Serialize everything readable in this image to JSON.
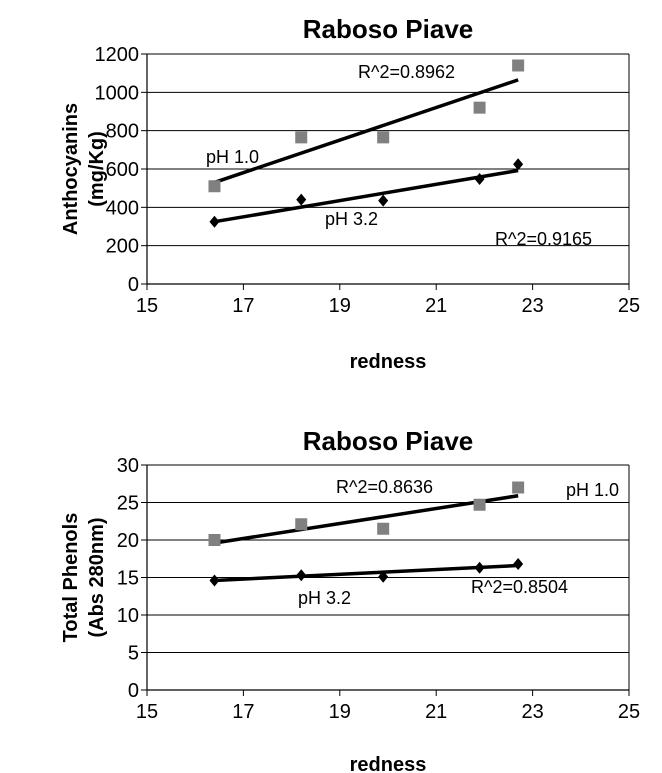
{
  "chart_data": [
    {
      "type": "scatter",
      "title": "Raboso Piave",
      "xlabel": "redness",
      "ylabel": [
        "Anthocyanins",
        "(mg/Kg)"
      ],
      "xlim": [
        15,
        25
      ],
      "ylim": [
        0,
        1200
      ],
      "xticks": [
        "15",
        "17",
        "19",
        "21",
        "23",
        "25"
      ],
      "yticks": [
        "0",
        "200",
        "400",
        "600",
        "800",
        "1000",
        "1200"
      ],
      "grid": "horizontal",
      "series": [
        {
          "name": "pH 1.0",
          "marker": "square",
          "color": "#808080",
          "x": [
            16.4,
            18.2,
            19.9,
            21.9,
            22.7
          ],
          "y": [
            510,
            765,
            765,
            920,
            1140
          ],
          "trendline": [
            [
              16.4,
              530
            ],
            [
              22.7,
              1065
            ]
          ],
          "r2_label": "R^2=0.8962"
        },
        {
          "name": "pH 3.2",
          "marker": "diamond",
          "color": "#000000",
          "x": [
            16.4,
            18.2,
            19.9,
            21.9,
            22.7
          ],
          "y": [
            325,
            440,
            435,
            548,
            625
          ],
          "trendline": [
            [
              16.4,
              325
            ],
            [
              22.7,
              592
            ]
          ],
          "r2_label": "R^2=0.9165"
        }
      ]
    },
    {
      "type": "scatter",
      "title": "Raboso Piave",
      "xlabel": "redness",
      "ylabel": [
        "Total Phenols",
        "(Abs 280nm)"
      ],
      "xlim": [
        15,
        25
      ],
      "ylim": [
        0,
        30
      ],
      "xticks": [
        "15",
        "17",
        "19",
        "21",
        "23",
        "25"
      ],
      "yticks": [
        "0",
        "5",
        "10",
        "15",
        "20",
        "25",
        "30"
      ],
      "grid": "horizontal",
      "series": [
        {
          "name": "pH 1.0",
          "marker": "square",
          "color": "#808080",
          "x": [
            16.4,
            18.2,
            19.9,
            21.9,
            22.7
          ],
          "y": [
            20.0,
            22.1,
            21.5,
            24.7,
            27.0
          ],
          "trendline": [
            [
              16.4,
              19.6
            ],
            [
              22.7,
              25.9
            ]
          ],
          "r2_label": "R^2=0.8636"
        },
        {
          "name": "pH 3.2",
          "marker": "diamond",
          "color": "#000000",
          "x": [
            16.4,
            18.2,
            19.9,
            21.9,
            22.7
          ],
          "y": [
            14.6,
            15.3,
            15.1,
            16.3,
            16.8
          ],
          "trendline": [
            [
              16.4,
              14.6
            ],
            [
              22.7,
              16.6
            ]
          ],
          "r2_label": "R^2=0.8504"
        }
      ]
    }
  ]
}
